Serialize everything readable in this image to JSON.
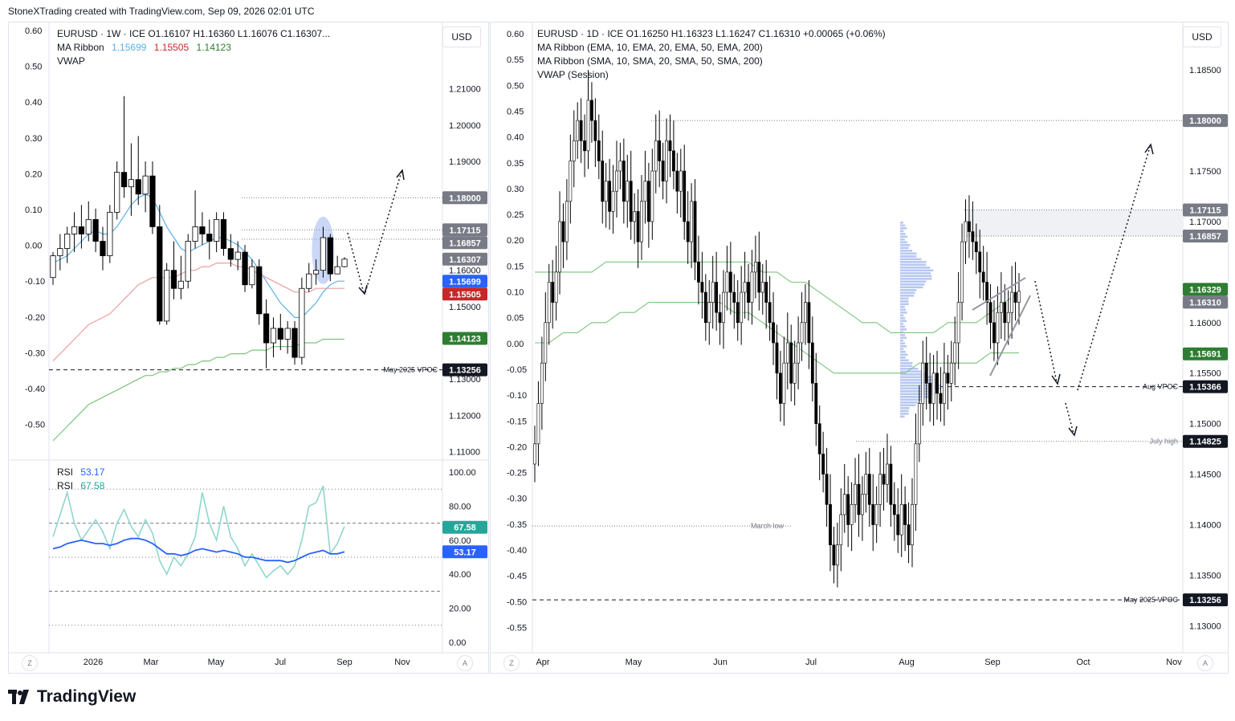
{
  "header": {
    "attribution": "StoneXTrading created with TradingView.com, Sep 09, 2026 02:01 UTC"
  },
  "footer": {
    "brand": "TradingView"
  },
  "colors": {
    "candle_up": "#ffffff",
    "candle_down": "#000000",
    "ma_fast": "#5ab0e8",
    "ma_mid": "#e8a0a0",
    "ma_slow": "#7cc47c",
    "rsi_fast": "#8fd6cc",
    "rsi_slow": "#2962ff",
    "badge_dark": "#131722",
    "badge_gray": "#787b86",
    "badge_blue": "#2962ff",
    "badge_red": "#c62828",
    "badge_green": "#2e7d32",
    "badge_teal": "#26a69a"
  },
  "left": {
    "legend": {
      "line1": "EURUSD · 1W · ICE   O1.16107   H1.16360   L1.16076   C1.16307...",
      "ma_label": "MA Ribbon",
      "ma_values": [
        "1.15699",
        "1.15505",
        "1.14123"
      ],
      "vwap": "VWAP"
    },
    "currency": "USD",
    "left_axis_ticks": [
      "0.60",
      "0.50",
      "0.40",
      "0.30",
      "0.20",
      "0.10",
      "0.00",
      "-0.10",
      "-0.20",
      "-0.30",
      "-0.40",
      "-0.50"
    ],
    "right_axis_ticks": [
      "1.21000",
      "1.20000",
      "1.19000",
      "1.16000",
      "1.15000",
      "1.13000",
      "1.12000",
      "1.11000"
    ],
    "price_badges": [
      {
        "text": "1.18000",
        "kind": "gray",
        "price": 1.18
      },
      {
        "text": "1.17115",
        "kind": "gray",
        "price": 1.17115
      },
      {
        "text": "1.16857",
        "kind": "gray",
        "price": 1.16857
      },
      {
        "text": "1.16307",
        "kind": "gray",
        "price": 1.16307
      },
      {
        "text": "1.15699",
        "kind": "blue",
        "price": 1.15699
      },
      {
        "text": "1.15505",
        "kind": "red",
        "price": 1.15505
      },
      {
        "text": "1.14123",
        "kind": "green",
        "price": 1.14123
      },
      {
        "text": "1.13256",
        "kind": "dark",
        "price": 1.13256
      }
    ],
    "annotations": {
      "vpoc": "May 2025 VPOC"
    },
    "x_labels": [
      "2026",
      "Mar",
      "May",
      "Jul",
      "Sep",
      "Nov"
    ],
    "rsi": {
      "label1": "RSI",
      "value1": "53.17",
      "label2": "RSI",
      "value2": "67.58",
      "ticks": [
        "100.00",
        "80.00",
        "60.00",
        "40.00",
        "20.00",
        "0.00"
      ],
      "badges": [
        {
          "text": "67.58",
          "kind": "teal",
          "value": 67.58
        },
        {
          "text": "53.17",
          "kind": "blue",
          "value": 53.17
        }
      ]
    },
    "z_button": "Z",
    "a_button": "A"
  },
  "right": {
    "legend": {
      "line1": "EURUSD · 1D · ICE   O1.16250   H1.16323   L1.16247   C1.16310   +0.00065 (+0.06%)",
      "line2": "MA Ribbon (EMA, 10, EMA, 20, EMA, 50, EMA, 200)",
      "line3": "MA Ribbon (SMA, 10, SMA, 20, SMA, 50, SMA, 200)",
      "line4": "VWAP (Session)"
    },
    "currency": "USD",
    "left_axis_ticks": [
      "0.60",
      "0.55",
      "0.50",
      "0.45",
      "0.40",
      "0.35",
      "0.30",
      "0.25",
      "0.20",
      "0.15",
      "0.10",
      "0.05",
      "0.00",
      "-0.05",
      "-0.10",
      "-0.15",
      "-0.20",
      "-0.25",
      "-0.30",
      "-0.35",
      "-0.40",
      "-0.45",
      "-0.50",
      "-0.55"
    ],
    "right_axis_ticks": [
      "1.18500",
      "1.17500",
      "1.17000",
      "1.16000",
      "1.15500",
      "1.15000",
      "1.14500",
      "1.14000",
      "1.13500",
      "1.13000"
    ],
    "price_badges": [
      {
        "text": "1.18000",
        "kind": "gray",
        "price": 1.18
      },
      {
        "text": "1.17115",
        "kind": "gray",
        "price": 1.17115
      },
      {
        "text": "1.16857",
        "kind": "gray",
        "price": 1.16857
      },
      {
        "text": "1.16329",
        "kind": "green",
        "price": 1.16329
      },
      {
        "text": "1.16310",
        "kind": "gray",
        "price": 1.1631
      },
      {
        "text": "1.15691",
        "kind": "green",
        "price": 1.15691
      },
      {
        "text": "1.15366",
        "kind": "dark",
        "price": 1.15366
      },
      {
        "text": "1.14825",
        "kind": "dark",
        "price": 1.14825
      },
      {
        "text": "1.13256",
        "kind": "dark",
        "price": 1.13256
      }
    ],
    "annotations": {
      "aug_vpoc": "Aug VPOC",
      "july_high": "July high",
      "march_low": "March low",
      "may_vpoc": "May 2025 VPOC"
    },
    "x_labels": [
      "Apr",
      "May",
      "Jun",
      "Jul",
      "Aug",
      "Sep",
      "Oct",
      "Nov"
    ],
    "z_button": "Z",
    "a_button": "A"
  },
  "chart_data": [
    {
      "type": "candlestick",
      "title": "EURUSD · 1W · ICE",
      "ylim": [
        1.105,
        1.225
      ],
      "x_labels": [
        "2026",
        "Mar",
        "May",
        "Jul",
        "Sep",
        "Nov"
      ],
      "ohlc": [
        [
          1.158,
          1.165,
          1.156,
          1.164
        ],
        [
          1.164,
          1.17,
          1.16,
          1.166
        ],
        [
          1.166,
          1.172,
          1.162,
          1.17
        ],
        [
          1.17,
          1.176,
          1.165,
          1.172
        ],
        [
          1.172,
          1.178,
          1.166,
          1.17
        ],
        [
          1.17,
          1.179,
          1.168,
          1.174
        ],
        [
          1.174,
          1.177,
          1.165,
          1.168
        ],
        [
          1.168,
          1.172,
          1.16,
          1.164
        ],
        [
          1.164,
          1.178,
          1.162,
          1.176
        ],
        [
          1.176,
          1.19,
          1.174,
          1.187
        ],
        [
          1.187,
          1.208,
          1.18,
          1.183
        ],
        [
          1.183,
          1.195,
          1.175,
          1.185
        ],
        [
          1.185,
          1.197,
          1.178,
          1.181
        ],
        [
          1.181,
          1.19,
          1.176,
          1.186
        ],
        [
          1.186,
          1.19,
          1.17,
          1.172
        ],
        [
          1.172,
          1.178,
          1.145,
          1.146
        ],
        [
          1.146,
          1.162,
          1.145,
          1.16
        ],
        [
          1.16,
          1.168,
          1.152,
          1.155
        ],
        [
          1.155,
          1.164,
          1.152,
          1.157
        ],
        [
          1.157,
          1.17,
          1.155,
          1.168
        ],
        [
          1.168,
          1.182,
          1.166,
          1.172
        ],
        [
          1.172,
          1.176,
          1.167,
          1.17
        ],
        [
          1.17,
          1.174,
          1.163,
          1.168
        ],
        [
          1.168,
          1.176,
          1.165,
          1.174
        ],
        [
          1.174,
          1.176,
          1.164,
          1.166
        ],
        [
          1.166,
          1.17,
          1.161,
          1.163
        ],
        [
          1.163,
          1.168,
          1.16,
          1.165
        ],
        [
          1.165,
          1.167,
          1.154,
          1.156
        ],
        [
          1.156,
          1.163,
          1.155,
          1.161
        ],
        [
          1.161,
          1.163,
          1.145,
          1.148
        ],
        [
          1.148,
          1.152,
          1.133,
          1.14
        ],
        [
          1.14,
          1.147,
          1.136,
          1.144
        ],
        [
          1.144,
          1.148,
          1.138,
          1.141
        ],
        [
          1.141,
          1.146,
          1.137,
          1.144
        ],
        [
          1.144,
          1.146,
          1.134,
          1.136
        ],
        [
          1.136,
          1.158,
          1.134,
          1.155
        ],
        [
          1.155,
          1.162,
          1.154,
          1.159
        ],
        [
          1.159,
          1.163,
          1.156,
          1.16
        ],
        [
          1.16,
          1.172,
          1.158,
          1.169
        ],
        [
          1.169,
          1.17,
          1.157,
          1.159
        ],
        [
          1.159,
          1.164,
          1.159,
          1.161
        ],
        [
          1.161,
          1.1636,
          1.1608,
          1.16307
        ]
      ],
      "ma_fast": [
        1.162,
        1.163,
        1.164,
        1.166,
        1.168,
        1.17,
        1.171,
        1.17,
        1.17,
        1.172,
        1.175,
        1.178,
        1.18,
        1.181,
        1.18,
        1.176,
        1.172,
        1.169,
        1.166,
        1.165,
        1.166,
        1.167,
        1.168,
        1.169,
        1.169,
        1.168,
        1.167,
        1.165,
        1.163,
        1.16,
        1.157,
        1.154,
        1.151,
        1.149,
        1.147,
        1.147,
        1.149,
        1.151,
        1.154,
        1.156,
        1.157,
        1.157
      ],
      "ma_mid": [
        1.135,
        1.137,
        1.139,
        1.141,
        1.143,
        1.145,
        1.146,
        1.147,
        1.148,
        1.15,
        1.152,
        1.154,
        1.156,
        1.157,
        1.158,
        1.158,
        1.158,
        1.158,
        1.159,
        1.16,
        1.16,
        1.161,
        1.161,
        1.162,
        1.162,
        1.162,
        1.161,
        1.161,
        1.16,
        1.159,
        1.158,
        1.157,
        1.156,
        1.155,
        1.154,
        1.154,
        1.154,
        1.155,
        1.155,
        1.155,
        1.155,
        1.155
      ],
      "ma_slow": [
        1.113,
        1.115,
        1.117,
        1.119,
        1.121,
        1.123,
        1.124,
        1.125,
        1.126,
        1.127,
        1.128,
        1.129,
        1.13,
        1.131,
        1.131,
        1.132,
        1.132,
        1.133,
        1.133,
        1.134,
        1.134,
        1.135,
        1.135,
        1.136,
        1.136,
        1.137,
        1.137,
        1.137,
        1.138,
        1.138,
        1.138,
        1.139,
        1.139,
        1.139,
        1.139,
        1.14,
        1.14,
        1.14,
        1.141,
        1.141,
        1.141,
        1.141
      ],
      "rsi_ylim": [
        0,
        100
      ],
      "rsi_fast": [
        62,
        75,
        88,
        70,
        60,
        66,
        72,
        65,
        55,
        70,
        78,
        68,
        62,
        72,
        64,
        48,
        40,
        50,
        45,
        52,
        62,
        88,
        70,
        60,
        80,
        62,
        55,
        45,
        52,
        45,
        38,
        42,
        45,
        40,
        45,
        60,
        80,
        82,
        92,
        52,
        58,
        68
      ],
      "rsi_slow": [
        55,
        56,
        58,
        59,
        60,
        59,
        58,
        58,
        57,
        58,
        60,
        61,
        61,
        60,
        58,
        55,
        52,
        52,
        51,
        52,
        54,
        55,
        54,
        53,
        54,
        53,
        52,
        50,
        50,
        49,
        48,
        48,
        48,
        47,
        48,
        50,
        52,
        53,
        54,
        52,
        52,
        53.17
      ]
    },
    {
      "type": "candlestick",
      "title": "EURUSD · 1D · ICE",
      "ylim": [
        1.127,
        1.189
      ],
      "x_labels": [
        "Apr",
        "May",
        "Jun",
        "Jul",
        "Aug",
        "Sep",
        "Oct",
        "Nov"
      ],
      "close": [
        1.148,
        1.152,
        1.156,
        1.16,
        1.164,
        1.162,
        1.165,
        1.17,
        1.168,
        1.172,
        1.176,
        1.178,
        1.18,
        1.178,
        1.177,
        1.182,
        1.18,
        1.178,
        1.176,
        1.172,
        1.174,
        1.171,
        1.173,
        1.175,
        1.176,
        1.172,
        1.174,
        1.17,
        1.171,
        1.168,
        1.172,
        1.174,
        1.17,
        1.175,
        1.178,
        1.176,
        1.174,
        1.178,
        1.177,
        1.175,
        1.173,
        1.175,
        1.17,
        1.168,
        1.172,
        1.166,
        1.164,
        1.163,
        1.16,
        1.162,
        1.164,
        1.161,
        1.16,
        1.163,
        1.165,
        1.163,
        1.162,
        1.16,
        1.163,
        1.164,
        1.162,
        1.165,
        1.166,
        1.163,
        1.164,
        1.162,
        1.16,
        1.158,
        1.155,
        1.152,
        1.156,
        1.158,
        1.154,
        1.156,
        1.158,
        1.16,
        1.162,
        1.158,
        1.154,
        1.15,
        1.147,
        1.145,
        1.142,
        1.138,
        1.136,
        1.138,
        1.141,
        1.143,
        1.14,
        1.142,
        1.144,
        1.141,
        1.143,
        1.145,
        1.142,
        1.14,
        1.142,
        1.145,
        1.144,
        1.146,
        1.142,
        1.141,
        1.139,
        1.142,
        1.14,
        1.138,
        1.142,
        1.148,
        1.152,
        1.156,
        1.154,
        1.152,
        1.155,
        1.153,
        1.152,
        1.155,
        1.154,
        1.156,
        1.158,
        1.162,
        1.168,
        1.17,
        1.169,
        1.168,
        1.167,
        1.165,
        1.164,
        1.162,
        1.16,
        1.158,
        1.161,
        1.162,
        1.16,
        1.161,
        1.163,
        1.162,
        1.1631
      ],
      "ema_long": [
        1.165,
        1.165,
        1.165,
        1.165,
        1.165,
        1.166,
        1.166,
        1.166,
        1.166,
        1.166,
        1.166,
        1.166,
        1.166,
        1.166,
        1.166,
        1.166,
        1.165,
        1.165,
        1.164,
        1.164,
        1.163,
        1.162,
        1.161,
        1.16,
        1.16,
        1.159,
        1.159,
        1.159,
        1.159,
        1.16,
        1.16,
        1.16,
        1.161,
        1.162,
        1.163
      ],
      "sma_long": [
        1.158,
        1.158,
        1.159,
        1.159,
        1.16,
        1.16,
        1.161,
        1.161,
        1.162,
        1.162,
        1.162,
        1.162,
        1.162,
        1.162,
        1.161,
        1.161,
        1.16,
        1.159,
        1.158,
        1.157,
        1.156,
        1.155,
        1.155,
        1.155,
        1.155,
        1.155,
        1.155,
        1.156,
        1.156,
        1.156,
        1.156,
        1.156,
        1.157,
        1.157,
        1.157
      ]
    }
  ]
}
